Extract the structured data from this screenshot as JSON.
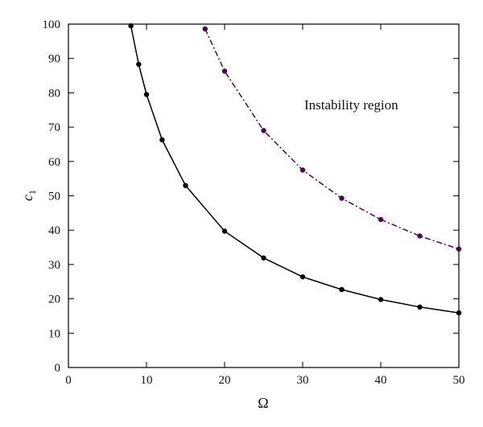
{
  "chart_data": {
    "type": "line",
    "xlabel": "Ω",
    "ylabel": "c",
    "ylabel_subscript": "1",
    "xlim": [
      0,
      50
    ],
    "ylim": [
      0,
      100
    ],
    "xticks": [
      0,
      10,
      20,
      30,
      40,
      50
    ],
    "yticks": [
      0,
      10,
      20,
      30,
      40,
      50,
      60,
      70,
      80,
      90,
      100
    ],
    "xtick_labels": [
      "0",
      "10",
      "20",
      "30",
      "40",
      "50"
    ],
    "ytick_labels": [
      "0",
      "10",
      "20",
      "30",
      "40",
      "50",
      "60",
      "70",
      "80",
      "90",
      "100"
    ],
    "grid": false,
    "annotation": "Instability region",
    "series": [
      {
        "style": "solid",
        "color": "#000000",
        "x": [
          8,
          9,
          10,
          12,
          15,
          20,
          25,
          30,
          35,
          40,
          45,
          50
        ],
        "y": [
          99.5,
          88.3,
          79.5,
          66.3,
          53.0,
          39.7,
          31.9,
          26.4,
          22.7,
          19.8,
          17.6,
          15.9
        ]
      },
      {
        "style": "dashdot",
        "color": "#4a0a4a",
        "x": [
          17.5,
          20,
          25,
          30,
          35,
          40,
          45,
          50
        ],
        "y": [
          98.6,
          86.3,
          69.0,
          57.5,
          49.3,
          43.1,
          38.3,
          34.5
        ]
      }
    ]
  }
}
